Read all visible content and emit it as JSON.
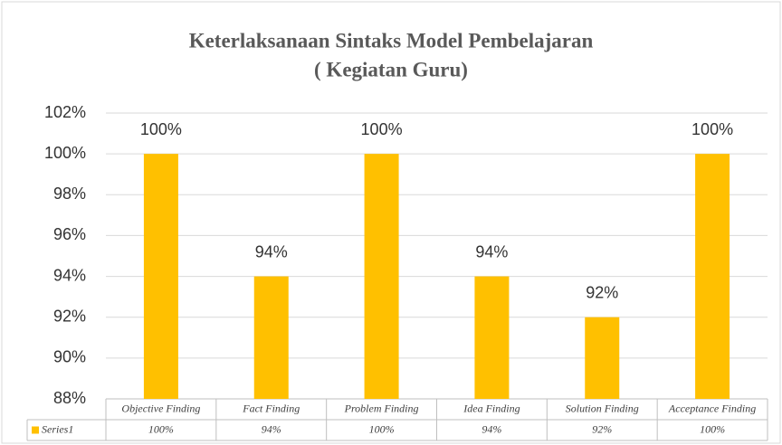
{
  "chart_data": {
    "type": "bar",
    "title": [
      "Keterlaksanaan Sintaks Model Pembelajaran",
      "( Kegiatan Guru)"
    ],
    "categories": [
      "Objective Finding",
      "Fact Finding",
      "Problem Finding",
      "Idea Finding",
      "Solution Finding",
      "Acceptance Finding"
    ],
    "series": [
      {
        "name": "Series1",
        "color": "#ffc000",
        "values": [
          100,
          94,
          100,
          94,
          92,
          100
        ],
        "value_labels": [
          "100%",
          "94%",
          "100%",
          "94%",
          "92%",
          "100%"
        ]
      }
    ],
    "ylim": [
      88,
      102
    ],
    "yticks": [
      {
        "value": 88,
        "label": "88%"
      },
      {
        "value": 90,
        "label": "90%"
      },
      {
        "value": 92,
        "label": "92%"
      },
      {
        "value": 94,
        "label": "94%"
      },
      {
        "value": 96,
        "label": "96%"
      },
      {
        "value": 98,
        "label": "98%"
      },
      {
        "value": 100,
        "label": "100%"
      },
      {
        "value": 102,
        "label": "102%"
      }
    ],
    "grid": true
  }
}
